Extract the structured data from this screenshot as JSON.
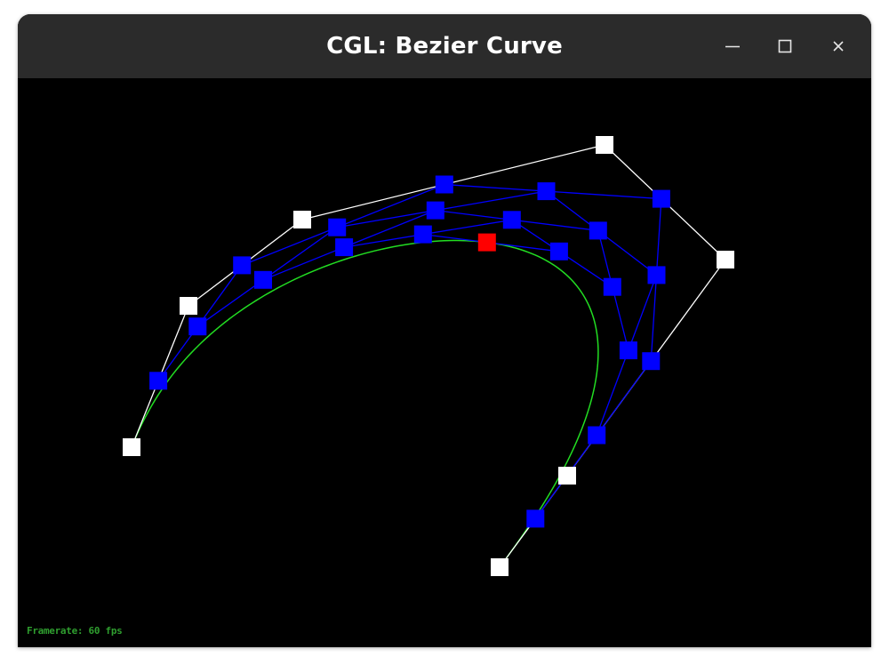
{
  "window": {
    "title": "CGL: Bezier Curve",
    "buttons": {
      "minimize": "minimize-icon",
      "maximize": "maximize-icon",
      "close": "close-icon"
    }
  },
  "status": {
    "framerate_text": "Framerate: 60 fps"
  },
  "colors": {
    "titlebar": "#2b2b2b",
    "canvas": "#000000",
    "control_points": "#ffffff",
    "control_polygon": "#ffffff",
    "intermediate_points": "#0000ff",
    "intermediate_lines": "#0000ff",
    "evaluated_point": "#ff0000",
    "curve": "#22dd22",
    "framerate_text": "#2f9e2f"
  }
}
